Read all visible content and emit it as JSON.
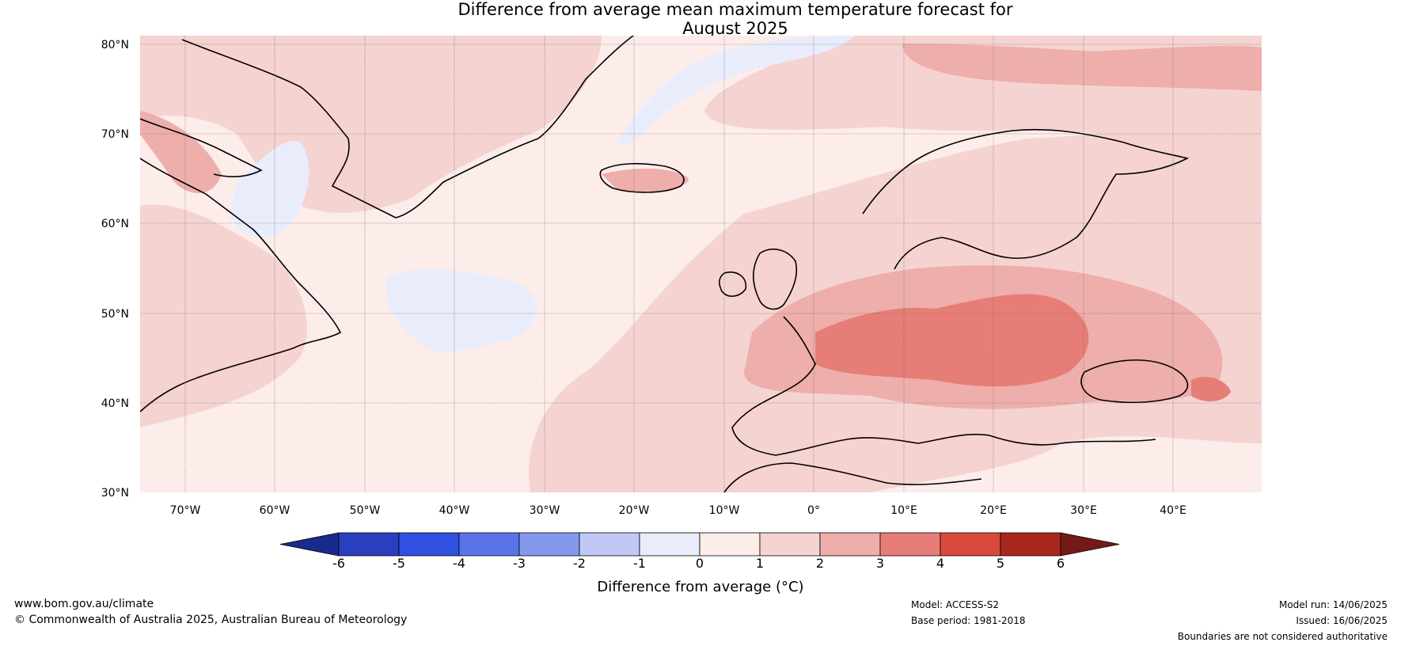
{
  "title_line1": "Difference from average mean maximum temperature forecast for",
  "title_line2": "August 2025",
  "lat_labels": [
    "80°N",
    "70°N",
    "60°N",
    "50°N",
    "40°N",
    "30°N"
  ],
  "lon_labels": [
    "70°W",
    "60°W",
    "50°W",
    "40°W",
    "30°W",
    "20°W",
    "10°W",
    "0°",
    "10°E",
    "20°E",
    "30°E",
    "40°E"
  ],
  "colorbar": {
    "label": "Difference from average (°C)",
    "ticks": [
      "-6",
      "-5",
      "-4",
      "-3",
      "-2",
      "-1",
      "0",
      "1",
      "2",
      "3",
      "4",
      "5",
      "6"
    ],
    "colors": [
      "#1a2a8c",
      "#2a3fbf",
      "#2f50e0",
      "#5a74e8",
      "#8499ee",
      "#c0c9f5",
      "#e8ecfb",
      "#fcecea",
      "#f5d3d1",
      "#eeaeab",
      "#e67e77",
      "#da4a3c",
      "#a8281f",
      "#731a16"
    ]
  },
  "footer": {
    "website": "www.bom.gov.au/climate",
    "copyright": "© Commonwealth of Australia 2025, Australian Bureau of Meteorology",
    "model": "Model: ACCESS-S2",
    "base_period": "Base period: 1981-2018",
    "model_run": "Model run: 14/06/2025",
    "issued": "Issued: 16/06/2025",
    "disclaimer": "Boundaries are not considered authoritative"
  }
}
